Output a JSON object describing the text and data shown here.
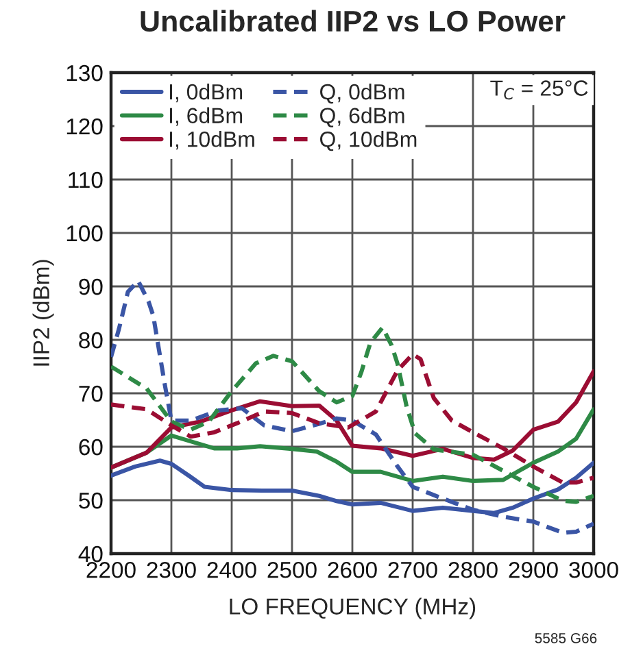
{
  "chart_data": {
    "type": "line",
    "title": "Uncalibrated IIP2 vs LO Power",
    "xlabel": "LO FREQUENCY (MHz)",
    "ylabel": "IIP2 (dBm)",
    "xlim": [
      2200,
      3000
    ],
    "ylim": [
      40,
      130
    ],
    "xticks": [
      2200,
      2300,
      2400,
      2500,
      2600,
      2700,
      2800,
      2900,
      3000
    ],
    "yticks": [
      40,
      50,
      60,
      70,
      80,
      90,
      100,
      110,
      120,
      130
    ],
    "grid": true,
    "legend": "top left",
    "annotations": [
      "T$_{C}$ = 25°C",
      "5585 G66"
    ],
    "series": [
      {
        "name": "I, 0dBm",
        "color": "#3a55a5",
        "line_style": "solid",
        "x": [
          2200,
          2240,
          2281,
          2300,
          2330,
          2355,
          2400,
          2450,
          2500,
          2545,
          2575,
          2600,
          2647,
          2700,
          2750,
          2800,
          2835,
          2866,
          2900,
          2941,
          2971,
          3000
        ],
        "values": [
          54.6,
          56.3,
          57.4,
          56.8,
          54.5,
          52.5,
          51.9,
          51.8,
          51.8,
          50.8,
          49.8,
          49.2,
          49.5,
          48,
          48.6,
          48,
          47.6,
          48.6,
          50.3,
          52,
          54.2,
          57
        ]
      },
      {
        "name": "I, 6dBm",
        "color": "#2e8a46",
        "line_style": "solid",
        "x": [
          2200,
          2259,
          2300,
          2332,
          2371,
          2409,
          2447,
          2500,
          2541,
          2574,
          2600,
          2647,
          2700,
          2750,
          2800,
          2850,
          2900,
          2941,
          2971,
          3000
        ],
        "values": [
          56.1,
          58.9,
          62.1,
          61,
          59.7,
          59.7,
          60.1,
          59.6,
          59.1,
          57.2,
          55.3,
          55.3,
          53.6,
          54.4,
          53.6,
          53.8,
          57,
          59.1,
          61.5,
          67
        ]
      },
      {
        "name": "I, 10dBm",
        "color": "#9b0d33",
        "line_style": "solid",
        "x": [
          2200,
          2259,
          2300,
          2348,
          2400,
          2447,
          2500,
          2545,
          2574,
          2600,
          2647,
          2700,
          2750,
          2800,
          2835,
          2866,
          2900,
          2941,
          2971,
          3000
        ],
        "values": [
          56.1,
          58.9,
          63.6,
          64.7,
          66.8,
          68.5,
          67.6,
          67.7,
          64.9,
          60.2,
          59.7,
          58.3,
          59.6,
          57.9,
          57.6,
          59.3,
          63.2,
          64.7,
          68.3,
          74.1
        ]
      },
      {
        "name": "Q, 0dBm",
        "color": "#3a55a5",
        "line_style": "dashed",
        "x": [
          2200,
          2213,
          2228,
          2245,
          2262,
          2270,
          2289,
          2300,
          2332,
          2379,
          2417,
          2454,
          2500,
          2545,
          2574,
          2600,
          2639,
          2675,
          2700,
          2750,
          2800,
          2850,
          2900,
          2949,
          2971,
          3000
        ],
        "values": [
          76.8,
          82,
          89,
          91,
          87.2,
          84.5,
          71.7,
          64.9,
          64.9,
          66.8,
          67.2,
          64,
          62.9,
          64.3,
          65.3,
          64.9,
          62.3,
          56.3,
          52.5,
          50.3,
          48.2,
          46.9,
          46,
          43.9,
          44.1,
          45.6
        ]
      },
      {
        "name": "Q, 6dBm",
        "color": "#2e8a46",
        "line_style": "dashed",
        "x": [
          2200,
          2259,
          2300,
          2332,
          2362,
          2400,
          2440,
          2469,
          2500,
          2545,
          2574,
          2600,
          2615,
          2630,
          2650,
          2665,
          2675,
          2690,
          2704,
          2735,
          2800,
          2850,
          2900,
          2949,
          2971,
          3000
        ],
        "values": [
          75,
          70.9,
          64.7,
          63.2,
          64.7,
          70.4,
          75.6,
          77,
          76,
          70.4,
          68.3,
          69.5,
          74,
          79.5,
          82.3,
          79,
          75.5,
          67.5,
          62.5,
          59.5,
          58.5,
          55.5,
          52.5,
          49.9,
          49.7,
          50.8
        ]
      },
      {
        "name": "Q, 10dBm",
        "color": "#9b0d33",
        "line_style": "dashed",
        "x": [
          2200,
          2259,
          2300,
          2332,
          2371,
          2409,
          2454,
          2500,
          2545,
          2593,
          2639,
          2675,
          2700,
          2713,
          2735,
          2765,
          2800,
          2850,
          2900,
          2949,
          2971,
          3000
        ],
        "values": [
          67.9,
          67,
          64,
          61.9,
          62.7,
          64.4,
          66.6,
          66.3,
          64.4,
          63.6,
          66.6,
          74.3,
          77.3,
          76.4,
          69.1,
          64.9,
          62.7,
          59.7,
          56.3,
          53.3,
          53.3,
          54.2
        ]
      }
    ]
  }
}
